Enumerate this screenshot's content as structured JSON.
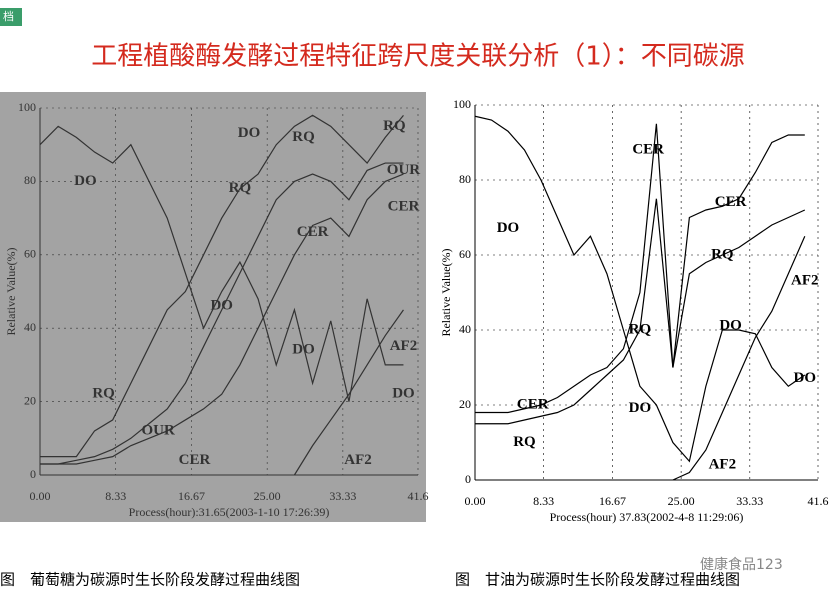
{
  "slide": {
    "tag": "档",
    "title": "工程植酸酶发酵过程特征跨尺度关联分析（1）：不同碳源",
    "captions": [
      "图　葡萄糖为碳源时生长阶段发酵过程曲线图",
      "图　甘油为碳源时生长阶段发酵过程曲线图"
    ],
    "watermark": "健康食品123"
  },
  "chart_data": [
    {
      "type": "line",
      "background": "#a3a3a3",
      "line_color": "#333333",
      "grid": true,
      "x_label": "Process(hour):31.65(2003-1-10 17:26:39)",
      "y_label": "Relative Value(%)",
      "xlim": [
        0,
        41.6
      ],
      "ylim": [
        0,
        100
      ],
      "xticks": [
        {
          "value": 0,
          "label": "0.00"
        },
        {
          "value": 8.33,
          "label": "8.33"
        },
        {
          "value": 16.67,
          "label": "16.67"
        },
        {
          "value": 25,
          "label": "25.00"
        },
        {
          "value": 33.33,
          "label": "33.33"
        },
        {
          "value": 41.6,
          "label": "41.6"
        }
      ],
      "yticks": [
        0,
        20,
        40,
        60,
        80,
        100
      ],
      "x": [
        0,
        2,
        4,
        6,
        8,
        10,
        12,
        14,
        16,
        18,
        20,
        22,
        24,
        26,
        28,
        30,
        32,
        34,
        36,
        38,
        40
      ],
      "series": [
        {
          "color": "#333333",
          "values": [
            90,
            95,
            92,
            88,
            85,
            90,
            80,
            70,
            55,
            40,
            50,
            58,
            48,
            30,
            45,
            25,
            42,
            20,
            48,
            30,
            30
          ]
        },
        {
          "color": "#333333",
          "values": [
            5,
            5,
            5,
            12,
            15,
            25,
            35,
            45,
            50,
            60,
            70,
            78,
            82,
            90,
            95,
            98,
            95,
            90,
            85,
            92,
            98
          ]
        },
        {
          "color": "#333333",
          "values": [
            3,
            3,
            3,
            4,
            5,
            8,
            10,
            12,
            15,
            18,
            22,
            30,
            40,
            50,
            60,
            68,
            70,
            65,
            75,
            80,
            82
          ]
        },
        {
          "color": "#333333",
          "values": [
            3,
            3,
            4,
            5,
            7,
            10,
            14,
            18,
            25,
            35,
            45,
            55,
            65,
            75,
            80,
            82,
            80,
            75,
            83,
            85,
            85
          ]
        },
        {
          "color": "#333333",
          "values": [
            null,
            null,
            null,
            null,
            null,
            null,
            null,
            null,
            null,
            null,
            null,
            null,
            null,
            null,
            0,
            8,
            15,
            22,
            30,
            38,
            45
          ]
        }
      ],
      "annotations": [
        {
          "text": "DO",
          "x": 5,
          "y": 80
        },
        {
          "text": "DO",
          "x": 23,
          "y": 93
        },
        {
          "text": "RQ",
          "x": 22,
          "y": 78
        },
        {
          "text": "RQ",
          "x": 29,
          "y": 92
        },
        {
          "text": "RQ",
          "x": 39,
          "y": 95
        },
        {
          "text": "OUR",
          "x": 40,
          "y": 83
        },
        {
          "text": "CER",
          "x": 40,
          "y": 73
        },
        {
          "text": "CER",
          "x": 30,
          "y": 66
        },
        {
          "text": "DO",
          "x": 20,
          "y": 46
        },
        {
          "text": "DO",
          "x": 29,
          "y": 34
        },
        {
          "text": "DO",
          "x": 40,
          "y": 22
        },
        {
          "text": "AF2",
          "x": 40,
          "y": 35
        },
        {
          "text": "AF2",
          "x": 35,
          "y": 4
        },
        {
          "text": "RQ",
          "x": 7,
          "y": 22
        },
        {
          "text": "OUR",
          "x": 13,
          "y": 12
        },
        {
          "text": "CER",
          "x": 17,
          "y": 4
        }
      ]
    },
    {
      "type": "line",
      "background": "#ffffff",
      "line_color": "#000000",
      "grid": true,
      "x_label": "Process(hour) 37.83(2002-4-8 11:29:06)",
      "y_label": "Relative Value(%)",
      "xlim": [
        0,
        41.6
      ],
      "ylim": [
        0,
        100
      ],
      "xticks": [
        {
          "value": 0,
          "label": "0.00"
        },
        {
          "value": 8.33,
          "label": "8.33"
        },
        {
          "value": 16.67,
          "label": "16.67"
        },
        {
          "value": 25,
          "label": "25.00"
        },
        {
          "value": 33.33,
          "label": "33.33"
        },
        {
          "value": 41.6,
          "label": "41.6"
        }
      ],
      "yticks": [
        0,
        20,
        40,
        60,
        80,
        100
      ],
      "x": [
        0,
        2,
        4,
        6,
        8,
        10,
        12,
        14,
        16,
        18,
        20,
        22,
        24,
        26,
        28,
        30,
        32,
        34,
        36,
        38,
        40
      ],
      "series": [
        {
          "color": "#000000",
          "values": [
            97,
            96,
            93,
            88,
            80,
            70,
            60,
            65,
            55,
            40,
            25,
            20,
            10,
            5,
            25,
            40,
            40,
            39,
            30,
            25,
            28
          ]
        },
        {
          "color": "#000000",
          "values": [
            18,
            18,
            18,
            19,
            20,
            22,
            25,
            28,
            30,
            35,
            50,
            95,
            30,
            70,
            72,
            73,
            75,
            82,
            90,
            92,
            92
          ]
        },
        {
          "color": "#000000",
          "values": [
            15,
            15,
            15,
            16,
            17,
            18,
            20,
            24,
            28,
            32,
            40,
            75,
            30,
            55,
            58,
            60,
            62,
            65,
            68,
            70,
            72
          ]
        },
        {
          "color": "#000000",
          "values": [
            null,
            null,
            null,
            null,
            null,
            null,
            null,
            null,
            null,
            null,
            null,
            null,
            0,
            2,
            8,
            18,
            28,
            38,
            45,
            55,
            65
          ]
        }
      ],
      "annotations": [
        {
          "text": "DO",
          "x": 4,
          "y": 67
        },
        {
          "text": "CER",
          "x": 21,
          "y": 88
        },
        {
          "text": "CER",
          "x": 7,
          "y": 20
        },
        {
          "text": "RQ",
          "x": 6,
          "y": 10
        },
        {
          "text": "CER",
          "x": 31,
          "y": 74
        },
        {
          "text": "RQ",
          "x": 30,
          "y": 60
        },
        {
          "text": "RQ",
          "x": 20,
          "y": 40
        },
        {
          "text": "DO",
          "x": 20,
          "y": 19
        },
        {
          "text": "DO",
          "x": 31,
          "y": 41
        },
        {
          "text": "DO",
          "x": 40,
          "y": 27
        },
        {
          "text": "AF2",
          "x": 40,
          "y": 53
        },
        {
          "text": "AF2",
          "x": 30,
          "y": 4
        }
      ]
    }
  ]
}
